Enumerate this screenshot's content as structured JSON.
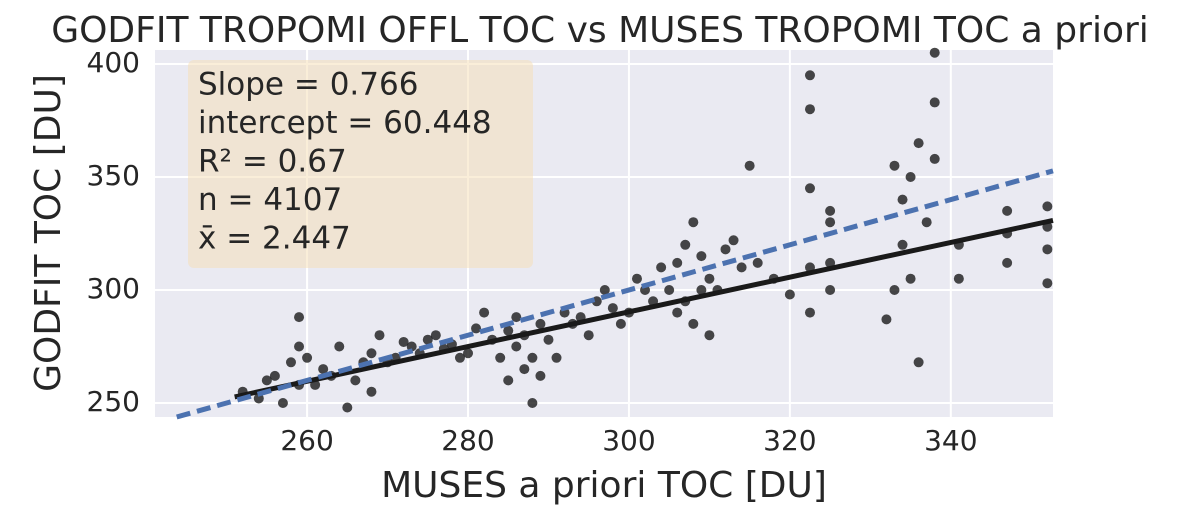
{
  "chart_data": {
    "type": "scatter",
    "title": "GODFIT TROPOMI OFFL TOC vs MUSES TROPOMI TOC a priori",
    "x_label": "MUSES a priori TOC [DU]",
    "y_label": "GODFIT TOC [DU]",
    "annotation": [
      "Slope = 0.766",
      "intercept = 60.448",
      "R² = 0.67",
      "n = 4107",
      "x̄ = 2.447"
    ],
    "xlim": [
      241.1,
      352.7
    ],
    "ylim": [
      243.8,
      406.2
    ],
    "xticks": [
      260,
      280,
      300,
      320,
      340
    ],
    "yticks": [
      250,
      300,
      350,
      400
    ],
    "grid": true,
    "color": "#1a1a1a",
    "x": [
      252,
      254,
      255,
      256,
      257,
      258,
      259,
      259,
      259,
      260,
      261,
      262,
      263,
      264,
      265,
      266,
      267,
      268,
      268,
      269,
      270,
      271,
      272,
      273,
      274,
      275,
      276,
      277,
      278,
      279,
      280,
      281,
      282,
      283,
      284,
      285,
      285,
      286,
      286,
      287,
      287,
      288,
      288,
      289,
      289,
      290,
      291,
      292,
      293,
      294,
      295,
      296,
      297,
      298,
      299,
      300,
      301,
      302,
      303,
      304,
      305,
      306,
      306,
      307,
      307,
      308,
      308,
      309,
      309,
      310,
      310,
      311,
      312,
      313,
      314,
      315,
      316,
      318,
      320,
      322.5,
      322.5,
      322.5,
      322.5,
      322.5,
      325,
      325,
      325,
      325,
      332,
      333,
      333,
      334,
      334,
      335,
      335,
      336,
      336,
      337,
      338,
      338,
      338,
      341,
      341,
      347,
      347,
      347,
      352,
      352,
      352,
      352
    ],
    "values": [
      255,
      252,
      260,
      262,
      250,
      268,
      288,
      275,
      258,
      270,
      258,
      265,
      262,
      275,
      248,
      260,
      268,
      272,
      255,
      280,
      268,
      270,
      277,
      275,
      272,
      278,
      280,
      274,
      276,
      270,
      272,
      283,
      290,
      278,
      270,
      282,
      260,
      275,
      288,
      265,
      280,
      250,
      270,
      285,
      262,
      278,
      270,
      290,
      285,
      288,
      280,
      295,
      300,
      292,
      285,
      290,
      305,
      300,
      295,
      310,
      300,
      312,
      290,
      320,
      295,
      330,
      285,
      300,
      315,
      305,
      280,
      300,
      318,
      322,
      310,
      355,
      312,
      305,
      298,
      290,
      380,
      395,
      345,
      310,
      330,
      312,
      300,
      335,
      287,
      300,
      355,
      320,
      340,
      305,
      350,
      268,
      365,
      330,
      405,
      383,
      358,
      320,
      305,
      335,
      325,
      312,
      337,
      318,
      303,
      328
    ],
    "fit_line": {
      "x": [
        251,
        352.7
      ],
      "values": [
        252.7,
        330.8
      ],
      "color": "#1a1a1a"
    },
    "identity_line": {
      "x": [
        243.8,
        352.7
      ],
      "values": [
        243.8,
        352.7
      ],
      "color": "#4c72b0",
      "dashed": true
    }
  }
}
